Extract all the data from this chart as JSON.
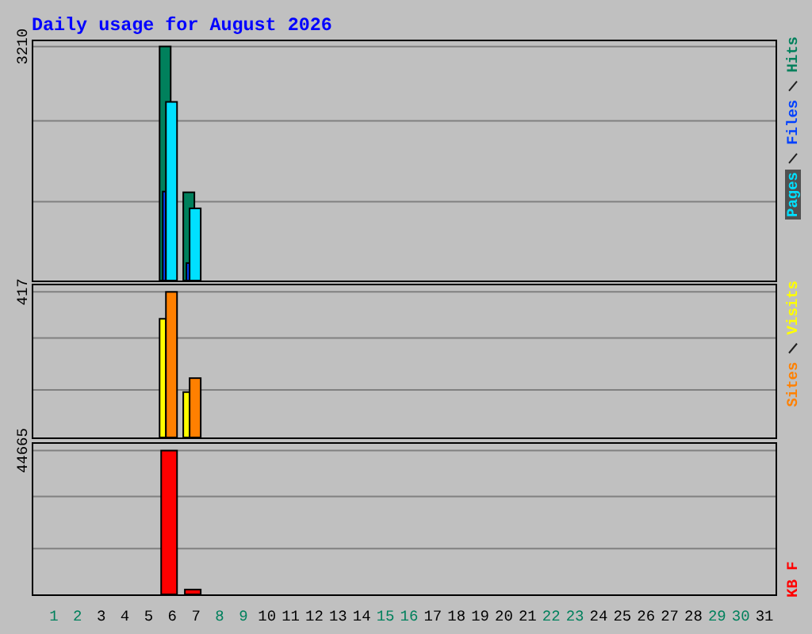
{
  "chart_data": [
    {
      "type": "bar",
      "title": "Daily usage for August 2026",
      "x": [
        "2026-08-06",
        "2026-08-07"
      ],
      "series": [
        {
          "name": "Hits",
          "color": "#00805c",
          "values": [
            3210,
            1210
          ]
        },
        {
          "name": "Files",
          "color": "#0040ff",
          "values": [
            1220,
            240
          ]
        },
        {
          "name": "Pages",
          "color": "#00e0ff",
          "values": [
            2450,
            990
          ]
        }
      ],
      "xlim": [
        "2026-07-31T03:12",
        "2026-08-31T11:12"
      ],
      "ylim": [
        0,
        3282
      ],
      "yticks": [
        {
          "value": 1080,
          "label": null
        },
        {
          "value": 2190,
          "label": null
        },
        3210
      ],
      "grid": "y",
      "legend": "right",
      "tick_labels": "y"
    },
    {
      "type": "bar",
      "x": [
        "2026-08-06",
        "2026-08-07"
      ],
      "series": [
        {
          "name": "Visits",
          "color": "#ffff00",
          "values": [
            340,
            130
          ]
        },
        {
          "name": "Sites",
          "color": "#ff8000",
          "values": [
            417,
            170
          ]
        }
      ],
      "xlim": [
        "2026-07-31T03:12",
        "2026-08-31T11:12"
      ],
      "ylim": [
        0,
        436
      ],
      "yticks": [
        {
          "value": 136,
          "label": null
        },
        {
          "value": 285,
          "label": null
        },
        417
      ],
      "grid": "y",
      "legend": "right",
      "tick_labels": "y"
    },
    {
      "type": "bar",
      "x": [
        "2026-08-06",
        "2026-08-07"
      ],
      "series": [
        {
          "name": "KB F",
          "color": "#ff0000",
          "values": [
            44665,
            1500
          ]
        }
      ],
      "xlim": [
        "2026-07-31T03:12",
        "2026-08-31T11:12"
      ],
      "xticks": [
        {
          "value": "2026-08-01",
          "label": "1"
        },
        {
          "value": "2026-08-02",
          "label": "2"
        },
        {
          "value": "2026-08-03",
          "label": "3"
        },
        {
          "value": "2026-08-04",
          "label": "4"
        },
        {
          "value": "2026-08-05",
          "label": "5"
        },
        {
          "value": "2026-08-06",
          "label": "6"
        },
        {
          "value": "2026-08-07",
          "label": "7"
        },
        {
          "value": "2026-08-08",
          "label": "8"
        },
        {
          "value": "2026-08-09",
          "label": "9"
        },
        {
          "value": "2026-08-10",
          "label": "10"
        },
        {
          "value": "2026-08-11",
          "label": "11"
        },
        {
          "value": "2026-08-12",
          "label": "12"
        },
        {
          "value": "2026-08-13",
          "label": "13"
        },
        {
          "value": "2026-08-14",
          "label": "14"
        },
        {
          "value": "2026-08-15",
          "label": "15"
        },
        {
          "value": "2026-08-16",
          "label": "16"
        },
        {
          "value": "2026-08-17",
          "label": "17"
        },
        {
          "value": "2026-08-18",
          "label": "18"
        },
        {
          "value": "2026-08-19",
          "label": "19"
        },
        {
          "value": "2026-08-20",
          "label": "20"
        },
        {
          "value": "2026-08-21",
          "label": "21"
        },
        {
          "value": "2026-08-22",
          "label": "22"
        },
        {
          "value": "2026-08-23",
          "label": "23"
        },
        {
          "value": "2026-08-24",
          "label": "24"
        },
        {
          "value": "2026-08-25",
          "label": "25"
        },
        {
          "value": "2026-08-26",
          "label": "26"
        },
        {
          "value": "2026-08-27",
          "label": "27"
        },
        {
          "value": "2026-08-28",
          "label": "28"
        },
        {
          "value": "2026-08-29",
          "label": "29"
        },
        {
          "value": "2026-08-30",
          "label": "30"
        },
        {
          "value": "2026-08-31",
          "label": "31"
        }
      ],
      "ylim": [
        0,
        46780
      ],
      "yticks": [
        {
          "value": 14230,
          "label": null
        },
        {
          "value": 30430,
          "label": null
        },
        44665
      ],
      "grid": "y",
      "legend": "right"
    }
  ]
}
